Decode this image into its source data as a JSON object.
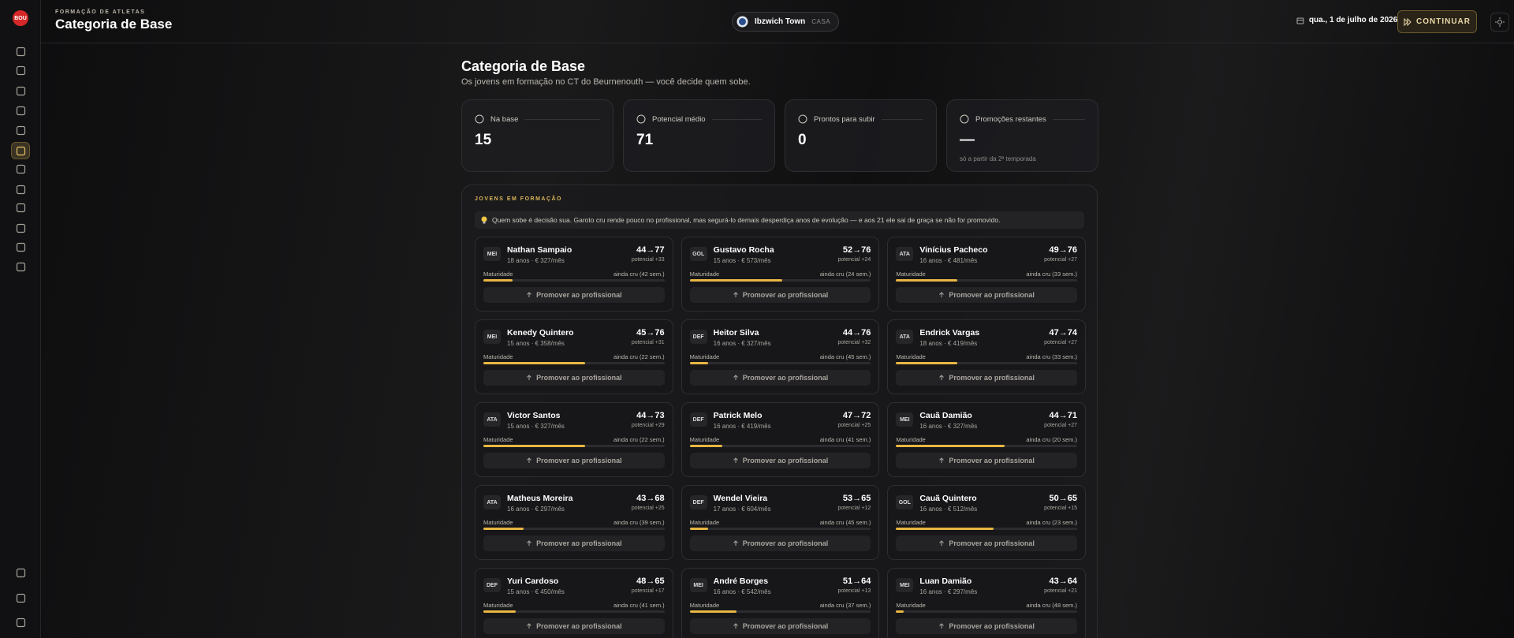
{
  "header": {
    "logo": "BOU",
    "kicker": "FORMAÇÃO DE ATLETAS",
    "title": "Categoria de Base",
    "club": "Ibzwich Town",
    "venue": "CASA",
    "date": "qua., 1 de julho de 2026",
    "continue": "CONTINUAR"
  },
  "page": {
    "title": "Categoria de Base",
    "subtitle": "Os jovens em formação no CT do Beurnenouth — você decide quem sobe."
  },
  "stats": [
    {
      "label": "Na base",
      "value": "15"
    },
    {
      "label": "Potencial médio",
      "value": "71"
    },
    {
      "label": "Prontos para subir",
      "value": "0"
    },
    {
      "label": "Promoções restantes",
      "value": "—",
      "note": "só a partir da 2ª temporada"
    }
  ],
  "panel": {
    "title": "JOVENS EM FORMAÇÃO",
    "tip": "Quem sobe é decisão sua. Garoto cru rende pouco no profissional, mas segurá-lo demais desperdiça anos de evolução — e aos 21 ele sai de graça se não for promovido.",
    "arrow": "→",
    "maturity_label": "Maturidade",
    "promote": "Promover ao profissional"
  },
  "players": [
    {
      "pos": "MEI",
      "name": "Nathan Sampaio",
      "details": "18 anos · € 327/mês",
      "current": "44",
      "potential": "77",
      "gain": "potencial +33",
      "status": "ainda cru (42 sem.)",
      "maturity": 16
    },
    {
      "pos": "GOL",
      "name": "Gustavo Rocha",
      "details": "15 anos · € 573/mês",
      "current": "52",
      "potential": "76",
      "gain": "potencial +24",
      "status": "ainda cru (24 sem.)",
      "maturity": 51
    },
    {
      "pos": "ATA",
      "name": "Vinícius Pacheco",
      "details": "16 anos · € 481/mês",
      "current": "49",
      "potential": "76",
      "gain": "potencial +27",
      "status": "ainda cru (33 sem.)",
      "maturity": 34
    },
    {
      "pos": "MEI",
      "name": "Kenedy Quintero",
      "details": "15 anos · € 358/mês",
      "current": "45",
      "potential": "76",
      "gain": "potencial +31",
      "status": "ainda cru (22 sem.)",
      "maturity": 56
    },
    {
      "pos": "DEF",
      "name": "Heitor Silva",
      "details": "16 anos · € 327/mês",
      "current": "44",
      "potential": "76",
      "gain": "potencial +32",
      "status": "ainda cru (45 sem.)",
      "maturity": 10
    },
    {
      "pos": "ATA",
      "name": "Endrick Vargas",
      "details": "18 anos · € 419/mês",
      "current": "47",
      "potential": "74",
      "gain": "potencial +27",
      "status": "ainda cru (33 sem.)",
      "maturity": 34
    },
    {
      "pos": "ATA",
      "name": "Victor Santos",
      "details": "15 anos · € 327/mês",
      "current": "44",
      "potential": "73",
      "gain": "potencial +29",
      "status": "ainda cru (22 sem.)",
      "maturity": 56
    },
    {
      "pos": "DEF",
      "name": "Patrick Melo",
      "details": "16 anos · € 419/mês",
      "current": "47",
      "potential": "72",
      "gain": "potencial +25",
      "status": "ainda cru (41 sem.)",
      "maturity": 18
    },
    {
      "pos": "MEI",
      "name": "Cauã Damião",
      "details": "16 anos · € 327/mês",
      "current": "44",
      "potential": "71",
      "gain": "potencial +27",
      "status": "ainda cru (20 sem.)",
      "maturity": 60
    },
    {
      "pos": "ATA",
      "name": "Matheus Moreira",
      "details": "16 anos · € 297/mês",
      "current": "43",
      "potential": "68",
      "gain": "potencial +25",
      "status": "ainda cru (39 sem.)",
      "maturity": 22
    },
    {
      "pos": "DEF",
      "name": "Wendel Vieira",
      "details": "17 anos · € 604/mês",
      "current": "53",
      "potential": "65",
      "gain": "potencial +12",
      "status": "ainda cru (45 sem.)",
      "maturity": 10
    },
    {
      "pos": "GOL",
      "name": "Cauã Quintero",
      "details": "16 anos · € 512/mês",
      "current": "50",
      "potential": "65",
      "gain": "potencial +15",
      "status": "ainda cru (23 sem.)",
      "maturity": 54
    },
    {
      "pos": "DEF",
      "name": "Yuri Cardoso",
      "details": "15 anos · € 450/mês",
      "current": "48",
      "potential": "65",
      "gain": "potencial +17",
      "status": "ainda cru (41 sem.)",
      "maturity": 18
    },
    {
      "pos": "MEI",
      "name": "André Borges",
      "details": "16 anos · € 542/mês",
      "current": "51",
      "potential": "64",
      "gain": "potencial +13",
      "status": "ainda cru (37 sem.)",
      "maturity": 26
    },
    {
      "pos": "MEI",
      "name": "Luan Damião",
      "details": "16 anos · € 297/mês",
      "current": "43",
      "potential": "64",
      "gain": "potencial +21",
      "status": "ainda cru (48 sem.)",
      "maturity": 4
    }
  ]
}
